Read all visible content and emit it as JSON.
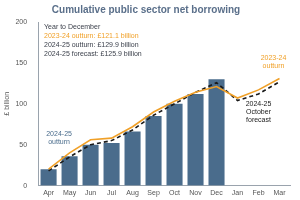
{
  "chart_data": {
    "type": "bar",
    "title": "Cumulative public sector net borrowing",
    "annotations": [
      {
        "text": "Year to December",
        "color": "#3a3f4a"
      },
      {
        "text": "2023-24 outturn: £121.1 billion",
        "color": "#f0a028"
      },
      {
        "text": "2024-25 outturn: £129.9 billion",
        "color": "#3a3f4a"
      },
      {
        "text": "2024-25 forecast: £125.9 billion",
        "color": "#3a3f4a"
      }
    ],
    "y_label": "£ billion",
    "categories": [
      "Apr",
      "May",
      "Jun",
      "Jul",
      "Aug",
      "Sep",
      "Oct",
      "Nov",
      "Dec",
      "Jan",
      "Feb",
      "Mar"
    ],
    "series": [
      {
        "name": "2024-25 outturn",
        "type": "bar",
        "color": "#4a6c8c",
        "values": [
          20,
          36,
          50,
          52,
          66,
          85,
          100,
          112,
          129.9,
          null,
          null,
          null
        ]
      },
      {
        "name": "2023-24 outturn",
        "type": "line",
        "color": "#f0a028",
        "line_style": "solid",
        "values": [
          20,
          40,
          56,
          58,
          72,
          90,
          103,
          114,
          121.1,
          107,
          117,
          131
        ]
      },
      {
        "name": "2024-25 October forecast",
        "type": "line",
        "color": "#1a1a1a",
        "line_style": "dashed",
        "values": [
          18,
          35,
          50,
          55,
          68,
          86,
          100,
          114,
          125.9,
          104,
          112,
          127
        ]
      }
    ],
    "ylim": [
      0,
      200
    ],
    "yticks": [
      0,
      50,
      100,
      150,
      200
    ],
    "grid": false
  }
}
